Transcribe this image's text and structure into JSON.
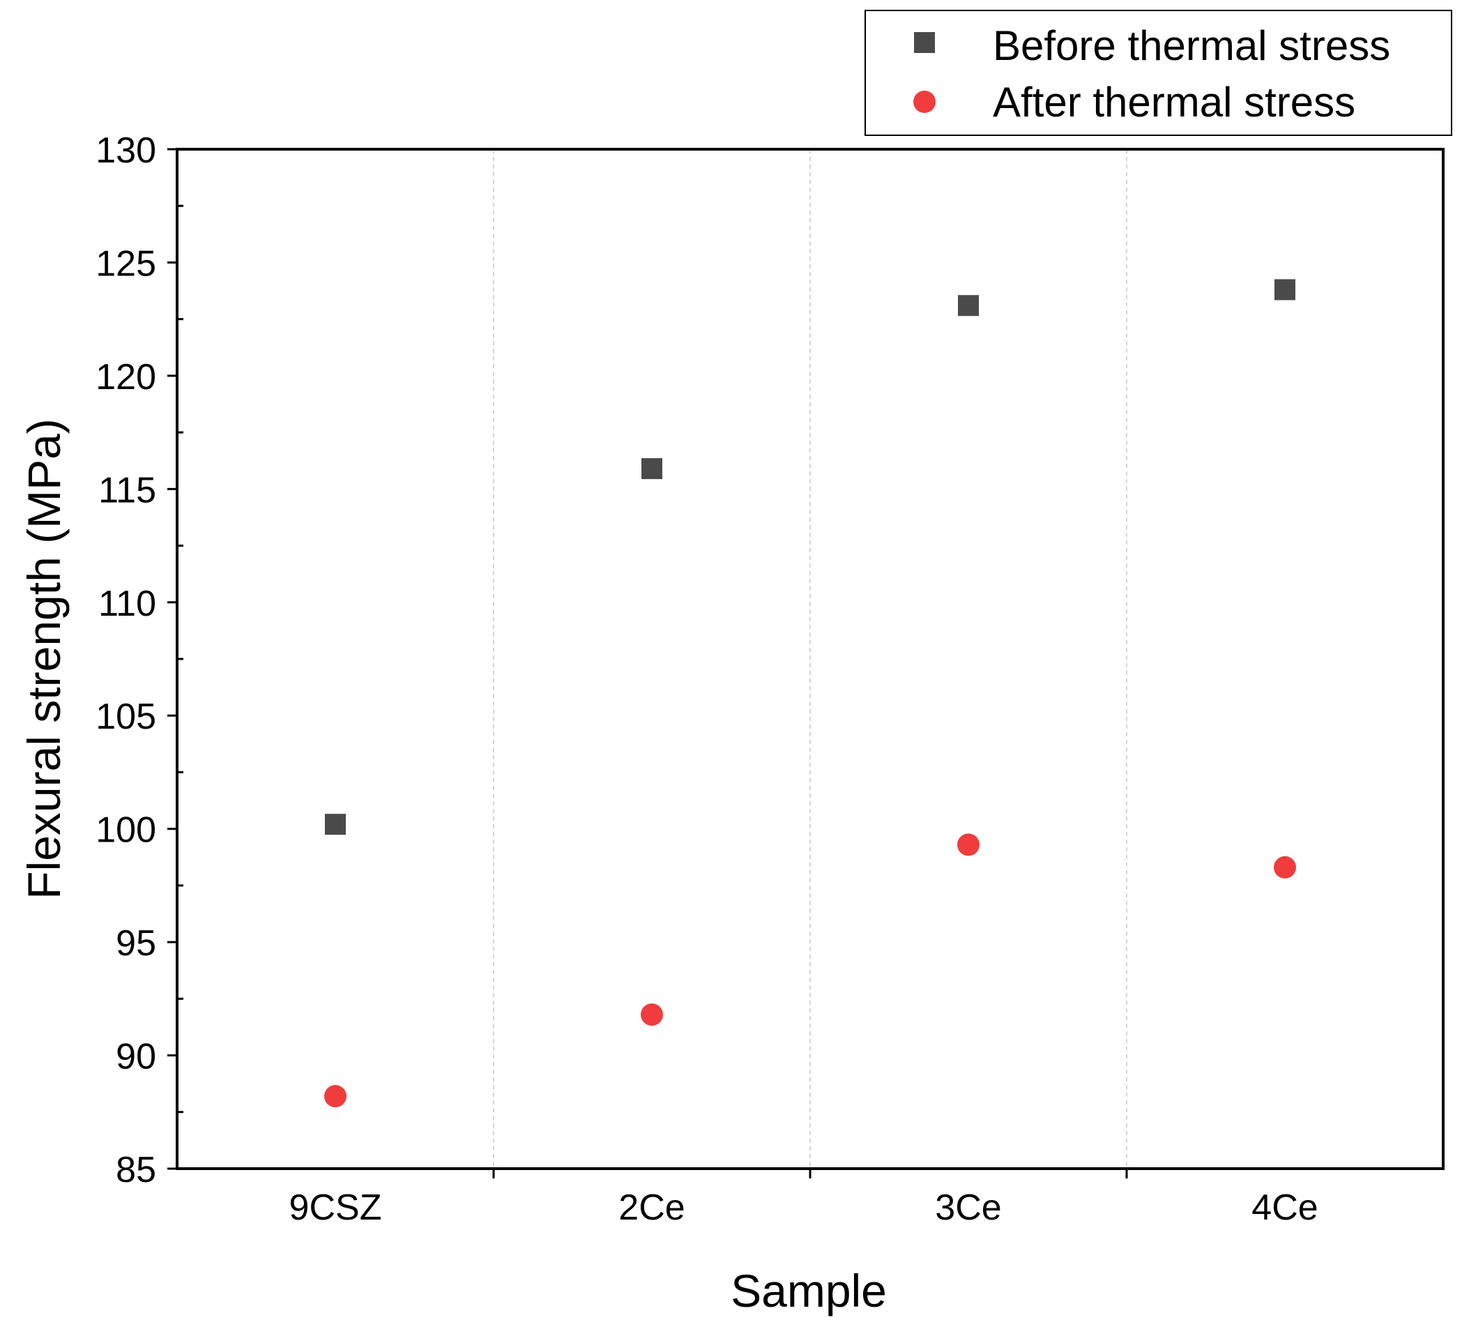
{
  "chart_data": {
    "type": "scatter",
    "title": "",
    "xlabel": "Sample",
    "ylabel": "Flexural strength (MPa)",
    "categories": [
      "9CSZ",
      "2Ce",
      "3Ce",
      "4Ce"
    ],
    "ylim": [
      85,
      130
    ],
    "yticks": [
      85,
      90,
      95,
      100,
      105,
      110,
      115,
      120,
      125,
      130
    ],
    "yticks_minor_step": 2.5,
    "grid": "vertical dashed separators between categories",
    "legend_position": "top-right, above the plot",
    "series": [
      {
        "name": "Before thermal stress",
        "marker": "square",
        "color": "#4a4a4a",
        "values": [
          100.2,
          115.9,
          123.1,
          123.8
        ]
      },
      {
        "name": "After thermal stress",
        "marker": "circle",
        "color": "#f03c3c",
        "values": [
          88.2,
          91.8,
          99.3,
          98.3
        ]
      }
    ]
  }
}
